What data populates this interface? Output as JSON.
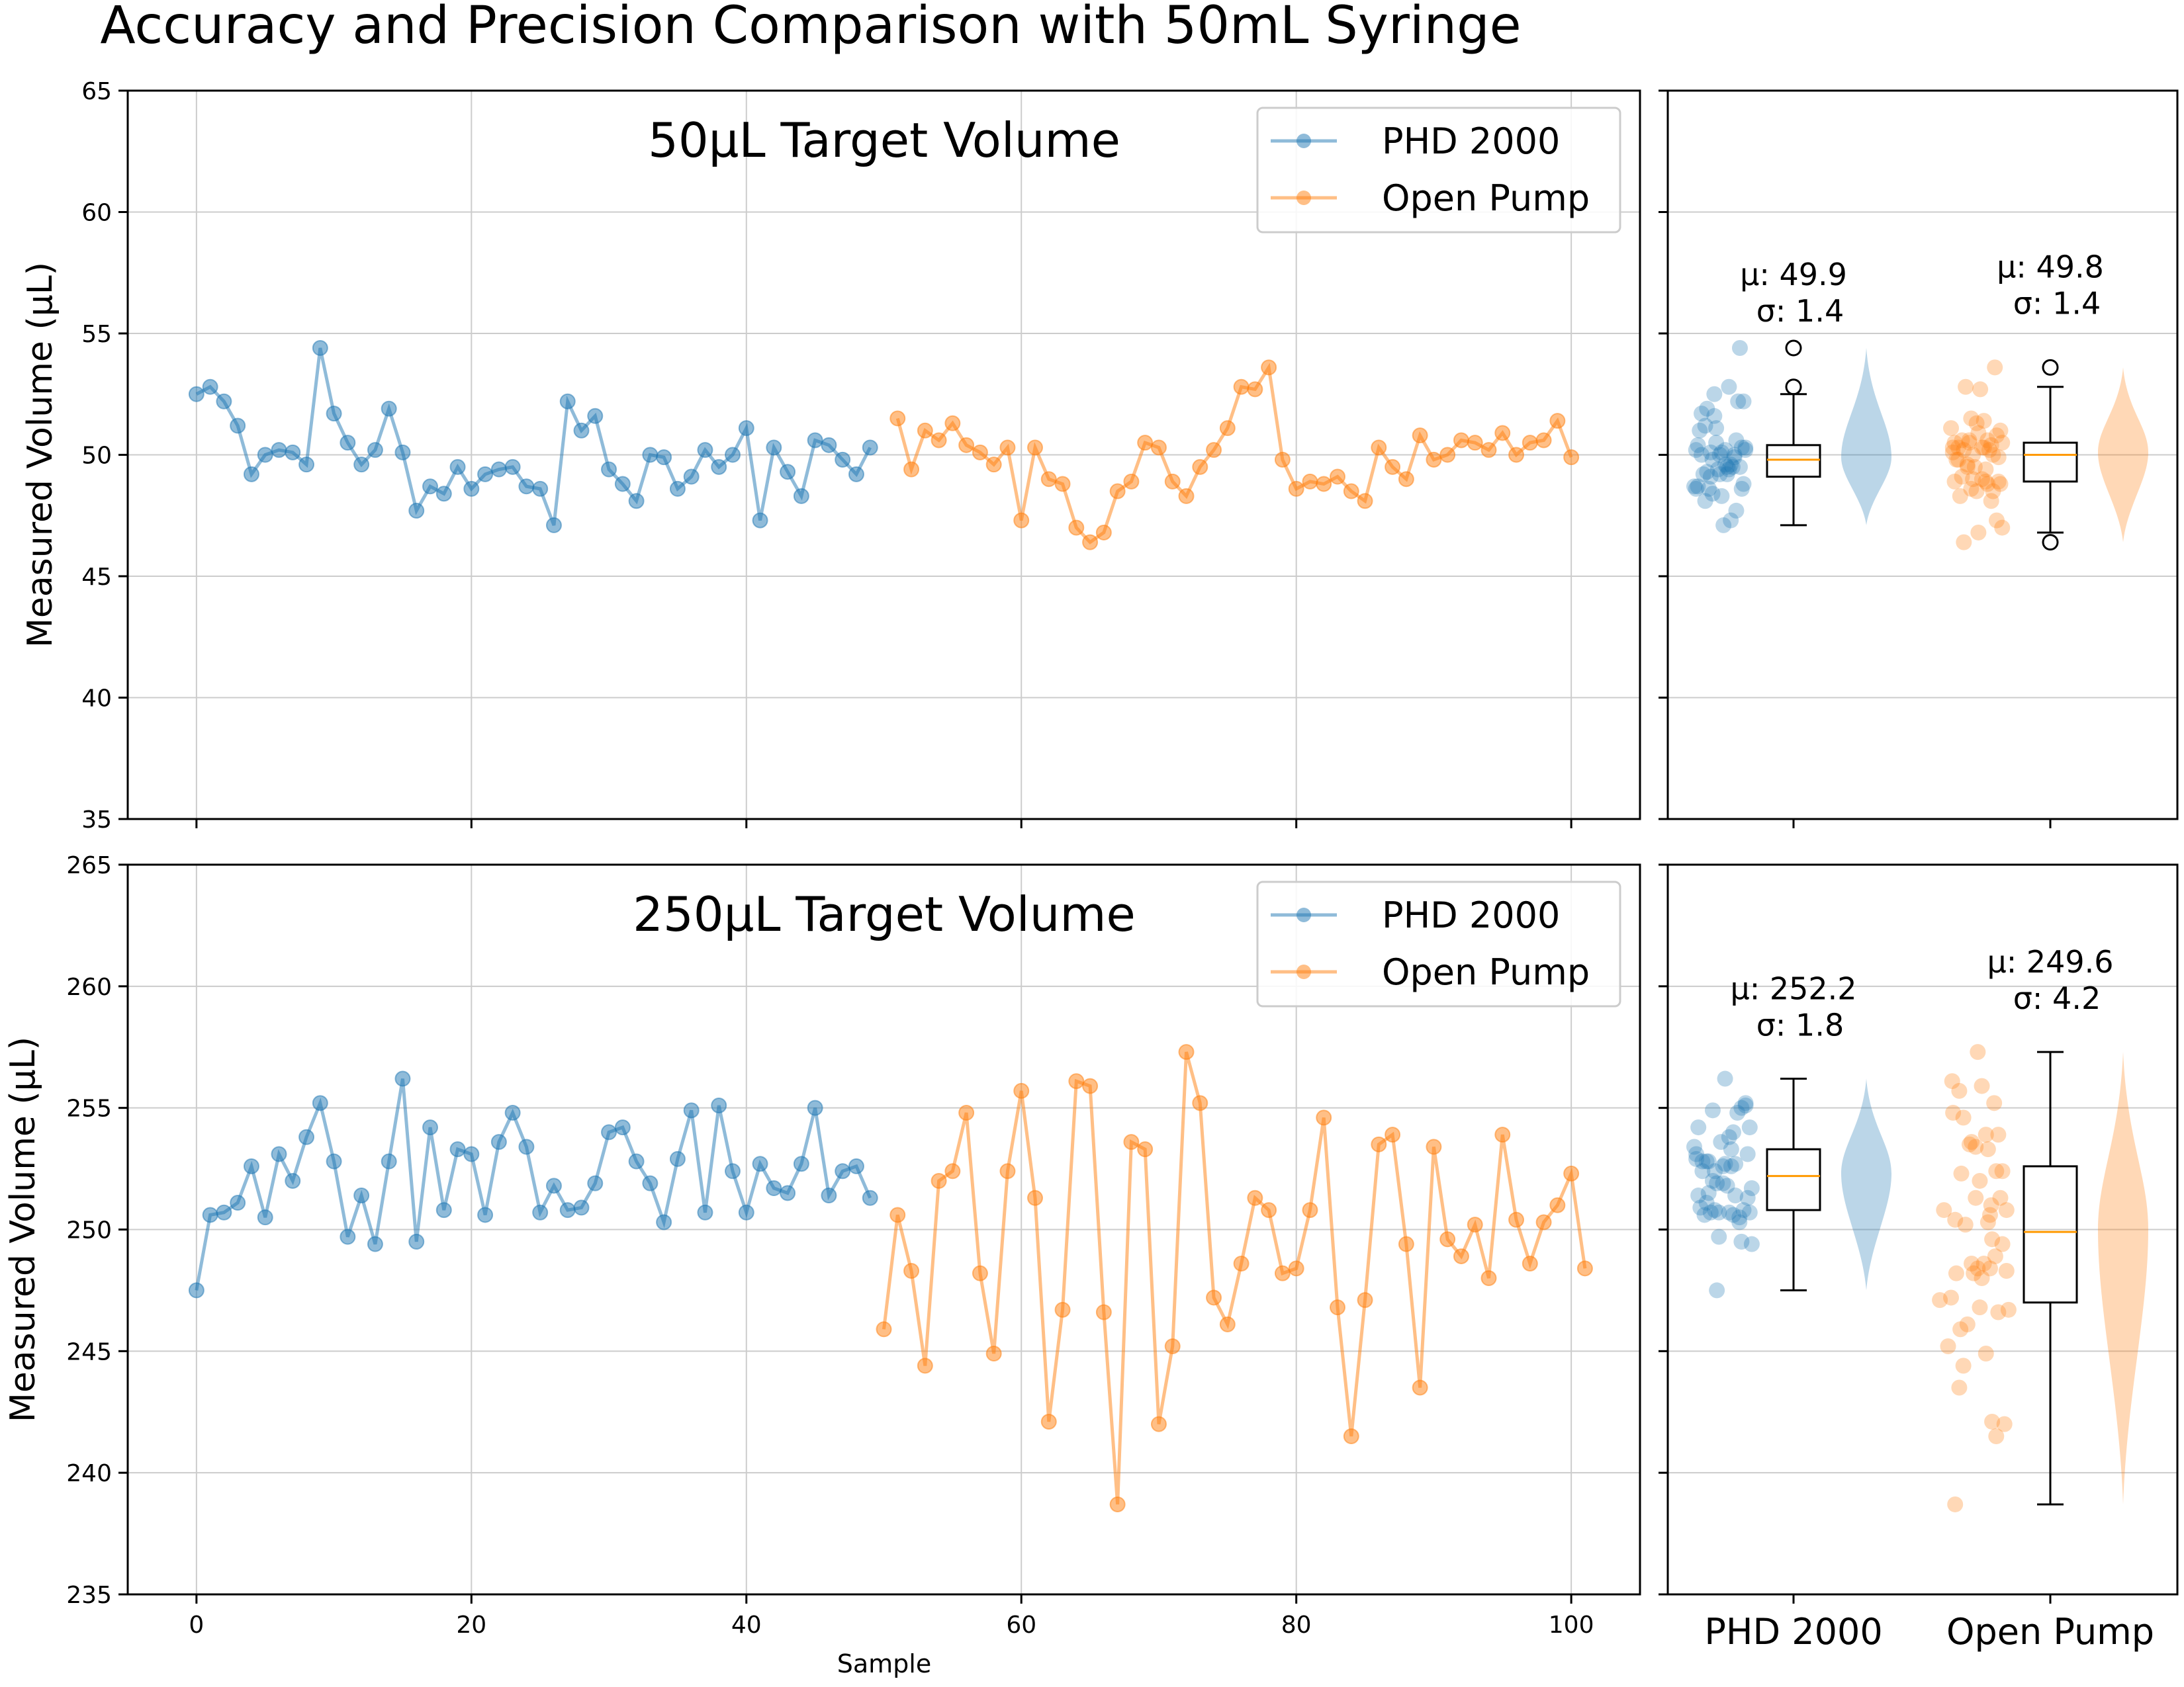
{
  "title": "Accuracy and Precision Comparison with 50mL Syringe",
  "colors": {
    "phd": "#1f77b4",
    "open": "#ff7f0e",
    "median": "#ff9900",
    "grid": "#cccccc"
  },
  "legend": {
    "placement": "upper-right",
    "items": [
      "PHD 2000",
      "Open Pump"
    ]
  },
  "chart_data": [
    {
      "type": "line",
      "title": "50µL Target Volume",
      "xlabel": "",
      "ylabel": "Measured Volume (µL)",
      "xlim": [
        -5,
        105
      ],
      "ylim": [
        35,
        65
      ],
      "xticks": [
        0,
        20,
        40,
        60,
        80,
        100
      ],
      "yticks": [
        35,
        40,
        45,
        50,
        55,
        60,
        65
      ],
      "grid": true,
      "series": [
        {
          "name": "PHD 2000",
          "color": "#1f77b4",
          "x_start": 0,
          "values": [
            52.5,
            52.8,
            52.2,
            51.2,
            49.2,
            50.0,
            50.2,
            50.1,
            49.6,
            54.4,
            51.7,
            50.5,
            49.6,
            50.2,
            51.9,
            50.1,
            47.7,
            48.7,
            48.4,
            49.5,
            48.6,
            49.2,
            49.4,
            49.5,
            48.7,
            48.6,
            47.1,
            52.2,
            51.0,
            51.6,
            49.4,
            48.8,
            48.1,
            50.0,
            49.9,
            48.6,
            49.1,
            50.2,
            49.5,
            50.0,
            51.1,
            47.3,
            50.3,
            49.3,
            48.3,
            50.6,
            50.4,
            49.8,
            49.2,
            50.3
          ]
        },
        {
          "name": "Open Pump",
          "color": "#ff7f0e",
          "x_start": 51,
          "values": [
            51.5,
            49.4,
            51.0,
            50.6,
            51.3,
            50.4,
            50.1,
            49.6,
            50.3,
            47.3,
            50.3,
            49.0,
            48.8,
            47.0,
            46.4,
            46.8,
            48.5,
            48.9,
            50.5,
            50.3,
            48.9,
            48.3,
            49.5,
            50.2,
            51.1,
            52.8,
            52.7,
            53.6,
            49.8,
            48.6,
            48.9,
            48.8,
            49.1,
            48.5,
            48.1,
            50.3,
            49.5,
            49.0,
            50.8,
            49.8,
            50.0,
            50.6,
            50.5,
            50.2,
            50.9,
            50.0,
            50.5,
            50.6,
            51.4,
            49.9
          ]
        }
      ]
    },
    {
      "type": "line",
      "title": "250µL Target Volume",
      "xlabel": "Sample",
      "ylabel": "Measured Volume (µL)",
      "xlim": [
        -5,
        105
      ],
      "ylim": [
        235,
        265
      ],
      "xticks": [
        0,
        20,
        40,
        60,
        80,
        100
      ],
      "yticks": [
        235,
        240,
        245,
        250,
        255,
        260,
        265
      ],
      "grid": true,
      "series": [
        {
          "name": "PHD 2000",
          "color": "#1f77b4",
          "x_start": 0,
          "values": [
            247.5,
            250.6,
            250.7,
            251.1,
            252.6,
            250.5,
            253.1,
            252.0,
            253.8,
            255.2,
            252.8,
            249.7,
            251.4,
            249.4,
            252.8,
            256.2,
            249.5,
            254.2,
            250.8,
            253.3,
            253.1,
            250.6,
            253.6,
            254.8,
            253.4,
            250.7,
            251.8,
            250.8,
            250.9,
            251.9,
            254.0,
            254.2,
            252.8,
            251.9,
            250.3,
            252.9,
            254.9,
            250.7,
            255.1,
            252.4,
            250.7,
            252.7,
            251.7,
            251.5,
            252.7,
            255.0,
            251.4,
            252.4,
            252.6,
            251.3
          ]
        },
        {
          "name": "Open Pump",
          "color": "#ff7f0e",
          "x_start": 50,
          "values": [
            245.9,
            250.6,
            248.3,
            244.4,
            252.0,
            252.4,
            254.8,
            248.2,
            244.9,
            252.4,
            255.7,
            251.3,
            242.1,
            246.7,
            256.1,
            255.9,
            246.6,
            238.7,
            253.6,
            253.3,
            242.0,
            245.2,
            257.3,
            255.2,
            247.2,
            246.1,
            248.6,
            251.3,
            250.8,
            248.2,
            248.4,
            250.8,
            254.6,
            246.8,
            241.5,
            247.1,
            253.5,
            253.9,
            249.4,
            243.5,
            253.4,
            249.6,
            248.9,
            250.2,
            248.0,
            253.9,
            250.4,
            248.6,
            250.3,
            251.0,
            252.3,
            248.4
          ]
        }
      ]
    },
    {
      "type": "box",
      "ylim": [
        35,
        65
      ],
      "categories": [
        "PHD 2000",
        "Open Pump"
      ],
      "stats": [
        {
          "mu_label": "μ: 49.9",
          "sigma_label": "σ: 1.4",
          "q1": 49.1,
          "median": 49.8,
          "q3": 50.4,
          "whisker_low": 47.1,
          "whisker_high": 52.5,
          "outliers": [
            54.4,
            52.8
          ],
          "violin_min": 47.1,
          "violin_max": 54.4,
          "violin_center": 49.9
        },
        {
          "mu_label": "μ: 49.8",
          "sigma_label": "σ: 1.4",
          "q1": 48.9,
          "median": 50.0,
          "q3": 50.5,
          "whisker_low": 46.8,
          "whisker_high": 52.8,
          "outliers": [
            53.6,
            46.4
          ],
          "violin_min": 46.4,
          "violin_max": 53.6,
          "violin_center": 50.1
        }
      ]
    },
    {
      "type": "box",
      "ylim": [
        235,
        265
      ],
      "categories": [
        "PHD 2000",
        "Open Pump"
      ],
      "stats": [
        {
          "mu_label": "μ: 252.2",
          "sigma_label": "σ: 1.8",
          "q1": 250.8,
          "median": 252.2,
          "q3": 253.3,
          "whisker_low": 247.5,
          "whisker_high": 256.2,
          "outliers": [],
          "violin_min": 247.5,
          "violin_max": 256.2,
          "violin_center": 252.3
        },
        {
          "mu_label": "μ: 249.6",
          "sigma_label": "σ: 4.2",
          "q1": 247.0,
          "median": 249.9,
          "q3": 252.6,
          "whisker_low": 238.7,
          "whisker_high": 257.3,
          "outliers": [],
          "violin_min": 238.7,
          "violin_max": 257.3,
          "violin_center": 250.0
        }
      ]
    }
  ]
}
